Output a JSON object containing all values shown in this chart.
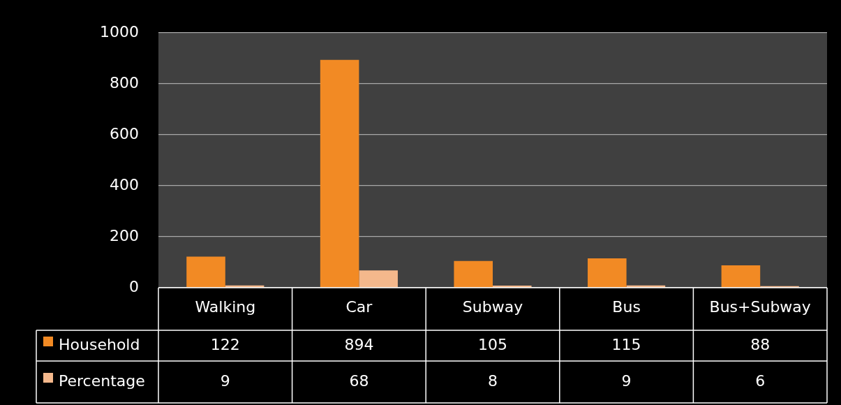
{
  "chart_data": {
    "type": "bar",
    "categories": [
      "Walking",
      "Car",
      "Subway",
      "Bus",
      "Bus+Subway"
    ],
    "series": [
      {
        "name": "Household",
        "color": "#f28a24",
        "values": [
          122,
          894,
          105,
          115,
          88
        ]
      },
      {
        "name": "Percentage",
        "color": "#f4b88c",
        "values": [
          9,
          68,
          8,
          9,
          6
        ]
      }
    ],
    "ylim": [
      0,
      1000
    ],
    "yticks": [
      0,
      200,
      400,
      600,
      800,
      1000
    ],
    "grid": "y",
    "legend": "bottom",
    "data_labels": true
  }
}
